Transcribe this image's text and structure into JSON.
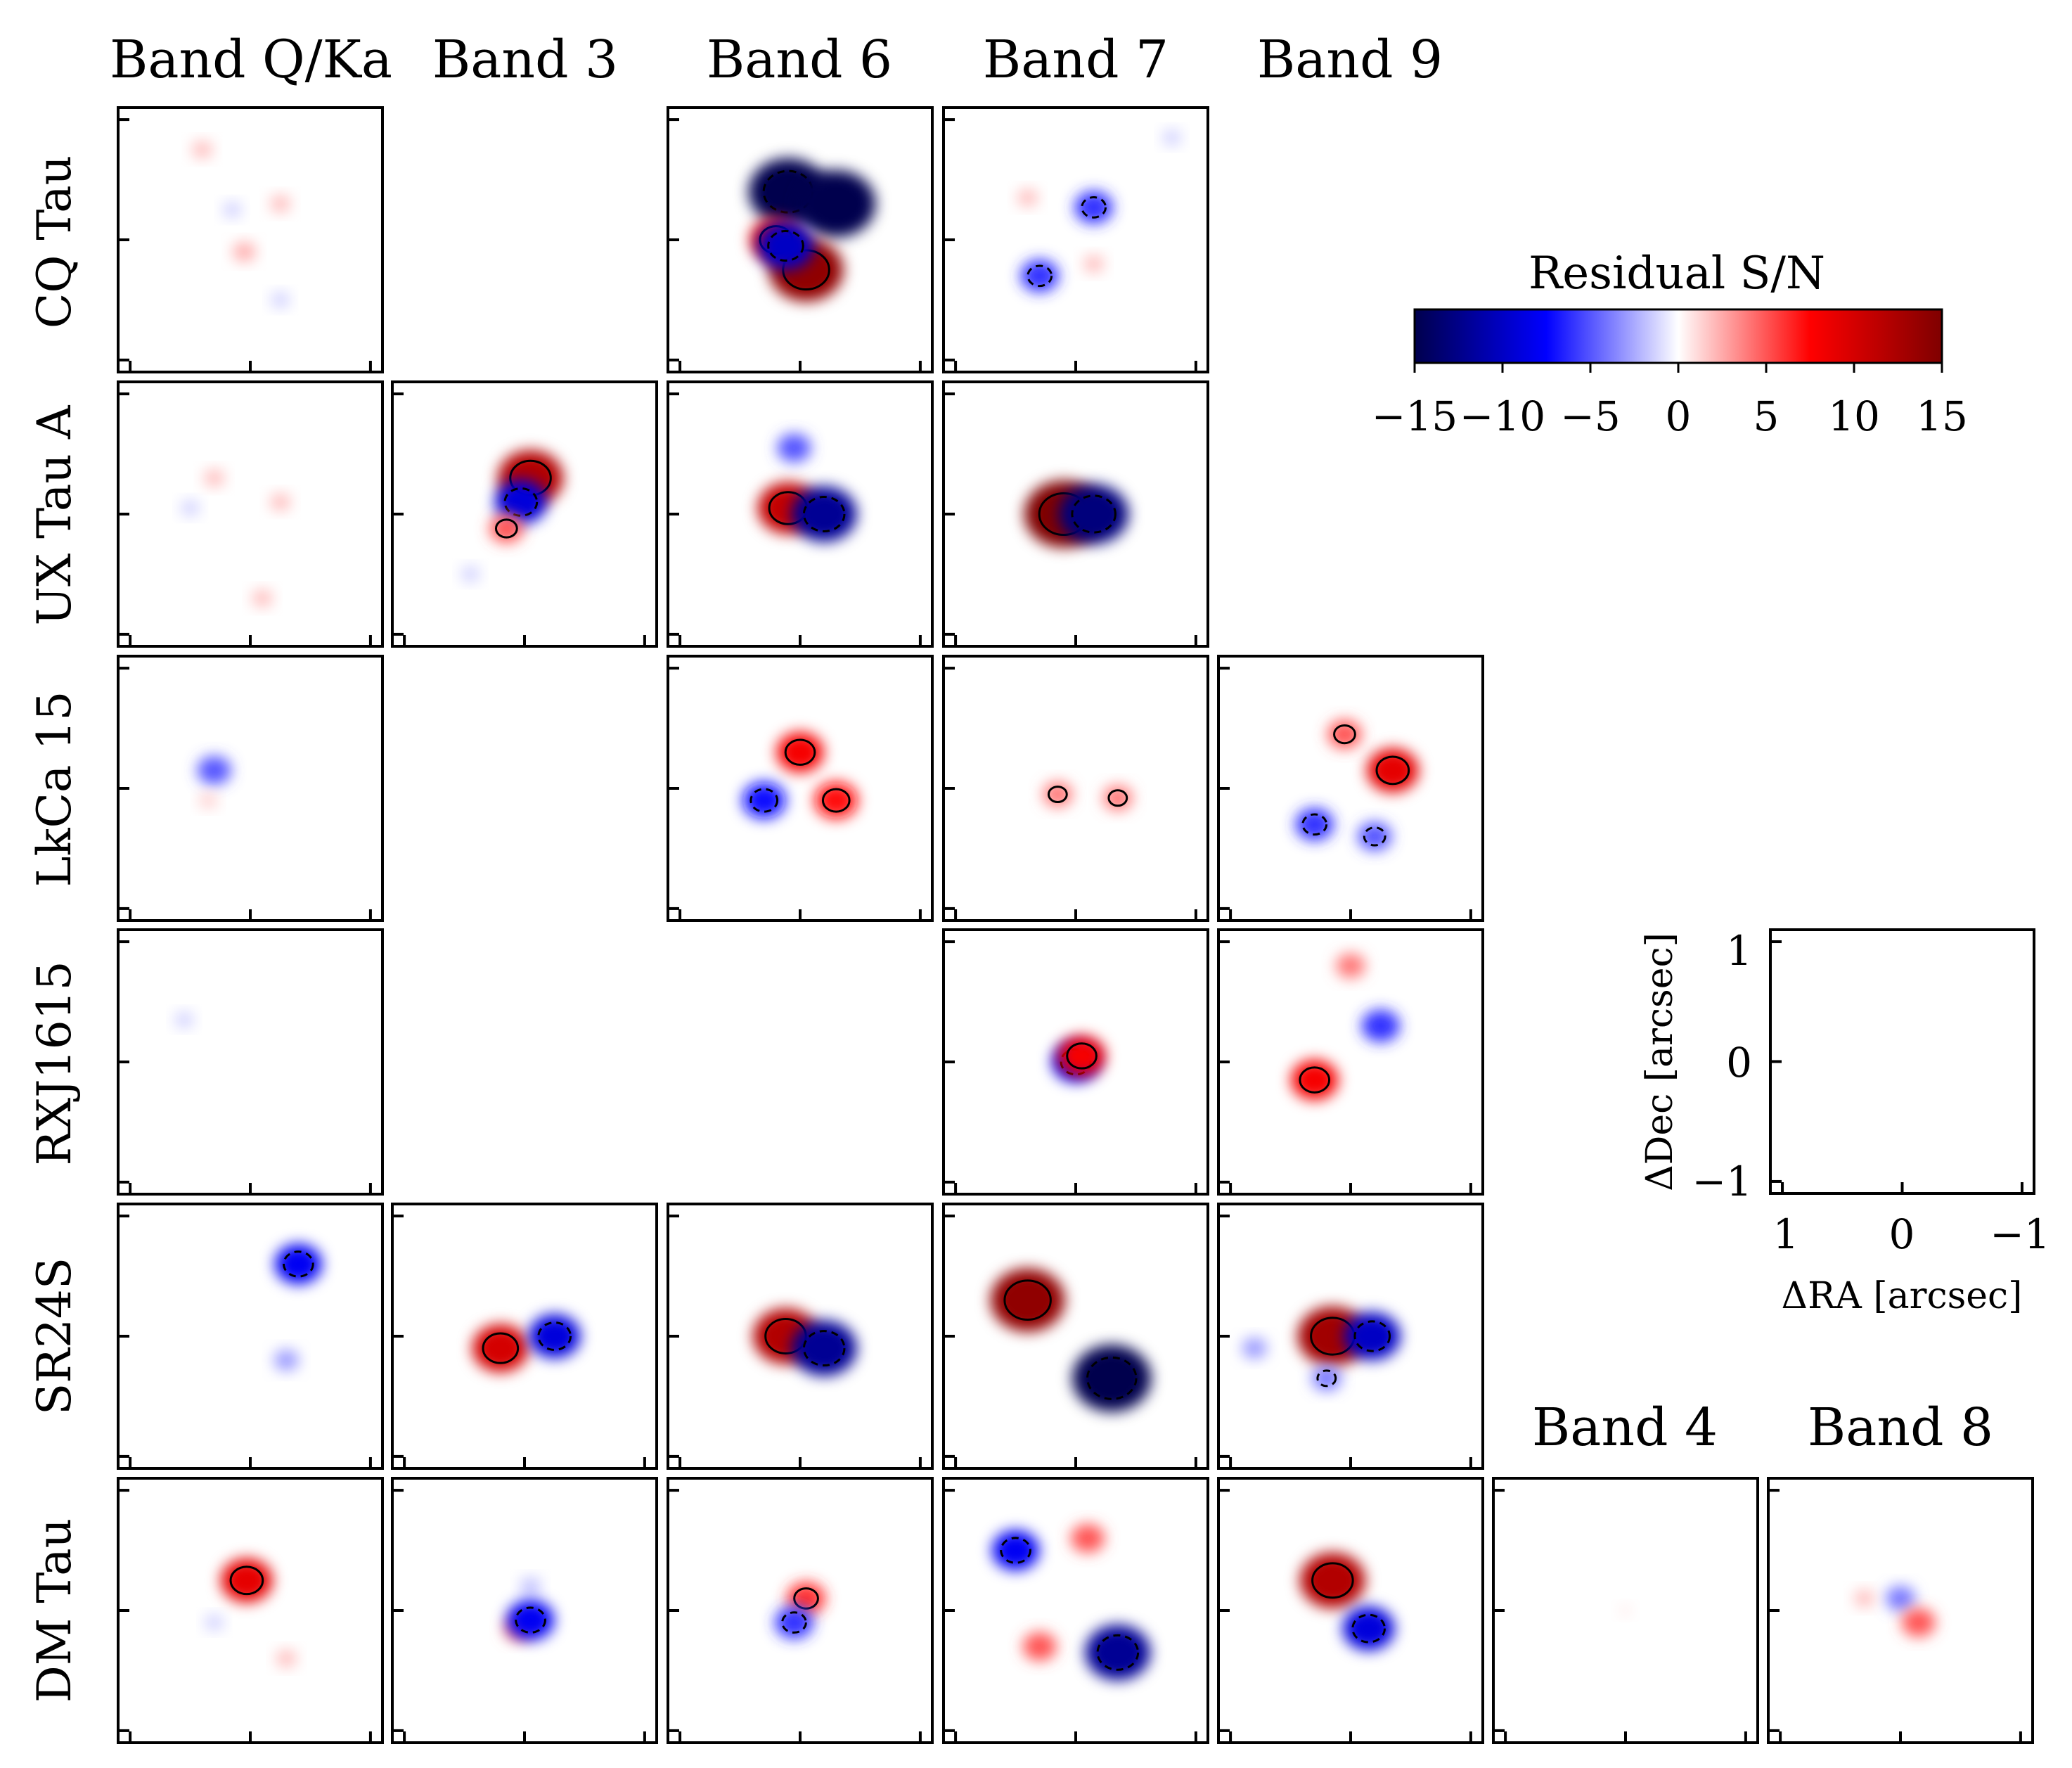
{
  "colors": {
    "neg_max": "#00004d",
    "neg_mid": "#0000ff",
    "zero": "#ffffff",
    "pos_mid": "#ff0000",
    "pos_max": "#7f0000",
    "frame": "#000000"
  },
  "chart_data": {
    "type": "heatmap",
    "columns": [
      "Band Q/Ka",
      "Band 3",
      "Band 6",
      "Band 7",
      "Band 9"
    ],
    "extra_columns": [
      "Band 4",
      "Band 8"
    ],
    "rows": [
      "CQ Tau",
      "UX Tau A",
      "LkCa 15",
      "RXJ1615",
      "SR24S",
      "DM Tau"
    ],
    "colorbar": {
      "label": "Residual S/N",
      "vmin": -15,
      "vmax": 15,
      "ticks": [
        "−15",
        "−10",
        "−5",
        "0",
        "5",
        "10",
        "15"
      ],
      "colormap": "seismic"
    },
    "contours": {
      "positive": "solid",
      "negative": "dashed"
    },
    "axes": {
      "xlabel": "ΔRA [arcsec]",
      "ylabel": "ΔDec [arcsec]",
      "xticks": [
        "1",
        "0",
        "−1"
      ],
      "yticks": [
        "1",
        "0",
        "−1"
      ],
      "xlim": [
        1.1,
        -1.1
      ],
      "ylim": [
        -1.1,
        1.1
      ]
    },
    "panels": [
      {
        "row": "CQ Tau",
        "col": "Band Q/Ka",
        "features": [
          {
            "x": 0.4,
            "y": 0.75,
            "peak": 2
          },
          {
            "x": 0.15,
            "y": 0.25,
            "peak": -1.5
          },
          {
            "x": -0.25,
            "y": 0.3,
            "peak": 2
          },
          {
            "x": 0.05,
            "y": -0.1,
            "peak": 2.5
          },
          {
            "x": -0.25,
            "y": -0.5,
            "peak": -1.5
          }
        ]
      },
      {
        "row": "CQ Tau",
        "col": "Band 6",
        "features": [
          {
            "x": 0.1,
            "y": 0.4,
            "peak": -15,
            "contour": true
          },
          {
            "x": -0.3,
            "y": 0.3,
            "peak": -15
          },
          {
            "x": -0.05,
            "y": -0.25,
            "peak": 14,
            "contour": true
          },
          {
            "x": 0.2,
            "y": 0.0,
            "peak": 9,
            "contour": true
          },
          {
            "x": 0.12,
            "y": -0.05,
            "peak": -10,
            "contour": true
          }
        ]
      },
      {
        "row": "CQ Tau",
        "col": "Band 7",
        "features": [
          {
            "x": -0.15,
            "y": 0.27,
            "peak": -6,
            "contour": true
          },
          {
            "x": 0.3,
            "y": -0.3,
            "peak": -6,
            "contour": true
          },
          {
            "x": 0.4,
            "y": 0.35,
            "peak": 2
          },
          {
            "x": -0.15,
            "y": -0.2,
            "peak": 2
          },
          {
            "x": -0.8,
            "y": 0.85,
            "peak": -1.5
          }
        ]
      },
      {
        "row": "UX Tau A",
        "col": "Band Q/Ka",
        "features": [
          {
            "x": 0.3,
            "y": 0.3,
            "peak": 2
          },
          {
            "x": -0.25,
            "y": 0.1,
            "peak": 2
          },
          {
            "x": 0.5,
            "y": 0.05,
            "peak": -1.5
          },
          {
            "x": -0.1,
            "y": -0.7,
            "peak": 2
          }
        ]
      },
      {
        "row": "UX Tau A",
        "col": "Band 3",
        "features": [
          {
            "x": -0.05,
            "y": 0.3,
            "peak": 12,
            "contour": true
          },
          {
            "x": 0.03,
            "y": 0.1,
            "peak": -9,
            "contour": true
          },
          {
            "x": 0.15,
            "y": -0.12,
            "peak": 5,
            "contour": true
          },
          {
            "x": 0.45,
            "y": -0.5,
            "peak": -1.5
          }
        ]
      },
      {
        "row": "UX Tau A",
        "col": "Band 6",
        "features": [
          {
            "x": 0.1,
            "y": 0.05,
            "peak": 11,
            "contour": true
          },
          {
            "x": -0.2,
            "y": 0.0,
            "peak": -12,
            "contour": true
          },
          {
            "x": 0.05,
            "y": 0.55,
            "peak": -5
          }
        ]
      },
      {
        "row": "UX Tau A",
        "col": "Band 7",
        "features": [
          {
            "x": 0.1,
            "y": 0.0,
            "peak": 15,
            "contour": true
          },
          {
            "x": -0.15,
            "y": 0.0,
            "peak": -13,
            "contour": true
          }
        ]
      },
      {
        "row": "LkCa 15",
        "col": "Band Q/Ka",
        "features": [
          {
            "x": 0.3,
            "y": 0.15,
            "peak": -5
          },
          {
            "x": 0.35,
            "y": -0.1,
            "peak": 1.5
          }
        ]
      },
      {
        "row": "LkCa 15",
        "col": "Band 6",
        "features": [
          {
            "x": 0.0,
            "y": 0.3,
            "peak": 8,
            "contour": true
          },
          {
            "x": -0.3,
            "y": -0.1,
            "peak": 7,
            "contour": true
          },
          {
            "x": 0.3,
            "y": -0.1,
            "peak": -7,
            "contour": true
          }
        ]
      },
      {
        "row": "LkCa 15",
        "col": "Band 7",
        "features": [
          {
            "x": 0.15,
            "y": -0.05,
            "peak": 4,
            "contour": true
          },
          {
            "x": -0.35,
            "y": -0.08,
            "peak": 4,
            "contour": true
          }
        ]
      },
      {
        "row": "LkCa 15",
        "col": "Band 9",
        "features": [
          {
            "x": -0.35,
            "y": 0.15,
            "peak": 9,
            "contour": true
          },
          {
            "x": 0.05,
            "y": 0.45,
            "peak": 5,
            "contour": true
          },
          {
            "x": 0.3,
            "y": -0.3,
            "peak": -6,
            "contour": true
          },
          {
            "x": -0.2,
            "y": -0.4,
            "peak": -5,
            "contour": true
          }
        ]
      },
      {
        "row": "RXJ1615",
        "col": "Band Q/Ka",
        "features": [
          {
            "x": 0.55,
            "y": 0.35,
            "peak": -1.5
          }
        ]
      },
      {
        "row": "RXJ1615",
        "col": "Band 7",
        "features": [
          {
            "x": 0.0,
            "y": 0.0,
            "peak": -8,
            "contour": true
          },
          {
            "x": -0.05,
            "y": 0.05,
            "peak": 8,
            "contour": true
          }
        ]
      },
      {
        "row": "RXJ1615",
        "col": "Band 9",
        "features": [
          {
            "x": -0.25,
            "y": 0.3,
            "peak": -6
          },
          {
            "x": 0.3,
            "y": -0.15,
            "peak": 8,
            "contour": true
          },
          {
            "x": 0.0,
            "y": 0.8,
            "peak": 4
          }
        ]
      },
      {
        "row": "SR24S",
        "col": "Band Q/Ka",
        "features": [
          {
            "x": -0.4,
            "y": 0.6,
            "peak": -8,
            "contour": true
          },
          {
            "x": -0.3,
            "y": -0.2,
            "peak": -3
          }
        ]
      },
      {
        "row": "SR24S",
        "col": "Band 3",
        "features": [
          {
            "x": 0.2,
            "y": -0.1,
            "peak": 10,
            "contour": true
          },
          {
            "x": -0.25,
            "y": 0.0,
            "peak": -9,
            "contour": true
          }
        ]
      },
      {
        "row": "SR24S",
        "col": "Band 6",
        "features": [
          {
            "x": 0.12,
            "y": 0.0,
            "peak": 12,
            "contour": true
          },
          {
            "x": -0.2,
            "y": -0.1,
            "peak": -12,
            "contour": true
          }
        ]
      },
      {
        "row": "SR24S",
        "col": "Band 7",
        "features": [
          {
            "x": 0.4,
            "y": 0.3,
            "peak": 14,
            "contour": true
          },
          {
            "x": -0.3,
            "y": -0.35,
            "peak": -15,
            "contour": true
          }
        ]
      },
      {
        "row": "SR24S",
        "col": "Band 9",
        "features": [
          {
            "x": 0.15,
            "y": 0.0,
            "peak": 13,
            "contour": true
          },
          {
            "x": -0.18,
            "y": 0.0,
            "peak": -10,
            "contour": true
          },
          {
            "x": 0.2,
            "y": -0.35,
            "peak": -4,
            "contour": true
          },
          {
            "x": 0.8,
            "y": -0.1,
            "peak": -3
          }
        ]
      },
      {
        "row": "DM Tau",
        "col": "Band Q/Ka",
        "features": [
          {
            "x": 0.03,
            "y": 0.25,
            "peak": 9,
            "contour": true
          },
          {
            "x": -0.3,
            "y": -0.4,
            "peak": 2
          },
          {
            "x": 0.3,
            "y": -0.1,
            "peak": -1.5
          }
        ]
      },
      {
        "row": "DM Tau",
        "col": "Band 3",
        "features": [
          {
            "x": 0.05,
            "y": -0.15,
            "peak": 4
          },
          {
            "x": -0.05,
            "y": 0.2,
            "peak": -2
          },
          {
            "x": -0.05,
            "y": -0.08,
            "peak": -8,
            "contour": true
          }
        ]
      },
      {
        "row": "DM Tau",
        "col": "Band 6",
        "features": [
          {
            "x": -0.05,
            "y": 0.1,
            "peak": 6,
            "contour": true
          },
          {
            "x": 0.05,
            "y": -0.1,
            "peak": -6,
            "contour": true
          }
        ]
      },
      {
        "row": "DM Tau",
        "col": "Band 7",
        "features": [
          {
            "x": 0.5,
            "y": 0.5,
            "peak": -8,
            "contour": true
          },
          {
            "x": -0.35,
            "y": -0.35,
            "peak": -12,
            "contour": true
          },
          {
            "x": -0.1,
            "y": 0.6,
            "peak": 5
          },
          {
            "x": 0.3,
            "y": -0.3,
            "peak": 5
          }
        ]
      },
      {
        "row": "DM Tau",
        "col": "Band 9",
        "features": [
          {
            "x": 0.15,
            "y": 0.25,
            "peak": 12,
            "contour": true
          },
          {
            "x": -0.15,
            "y": -0.15,
            "peak": -9,
            "contour": true
          }
        ]
      },
      {
        "row": "DM Tau",
        "col": "Band 4",
        "features": [
          {
            "x": 0.0,
            "y": 0.0,
            "peak": 0.5
          }
        ]
      },
      {
        "row": "DM Tau",
        "col": "Band 8",
        "features": [
          {
            "x": 0.0,
            "y": 0.1,
            "peak": -4
          },
          {
            "x": -0.15,
            "y": -0.1,
            "peak": 5
          },
          {
            "x": 0.3,
            "y": 0.1,
            "peak": 2
          }
        ]
      }
    ]
  }
}
